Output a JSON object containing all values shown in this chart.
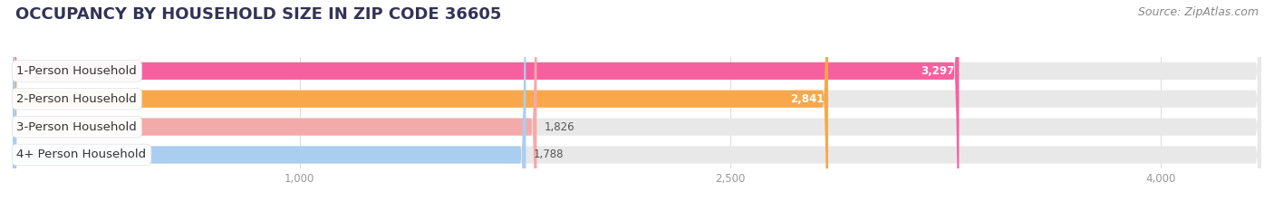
{
  "title": "OCCUPANCY BY HOUSEHOLD SIZE IN ZIP CODE 36605",
  "source": "Source: ZipAtlas.com",
  "categories": [
    "1-Person Household",
    "2-Person Household",
    "3-Person Household",
    "4+ Person Household"
  ],
  "values": [
    3297,
    2841,
    1826,
    1788
  ],
  "bar_colors": [
    "#F7609E",
    "#F8A84B",
    "#F4AAAA",
    "#AACEF0"
  ],
  "value_text_colors": [
    "#ffffff",
    "#ffffff",
    "#555555",
    "#555555"
  ],
  "xlim_max": 4350,
  "xticks": [
    1000,
    2500,
    4000
  ],
  "background_color": "#ffffff",
  "bg_bar_color": "#e8e8e8",
  "bar_height": 0.62,
  "title_fontsize": 13,
  "source_fontsize": 9,
  "label_fontsize": 9.5,
  "value_fontsize": 8.5,
  "rounding_size": 20
}
